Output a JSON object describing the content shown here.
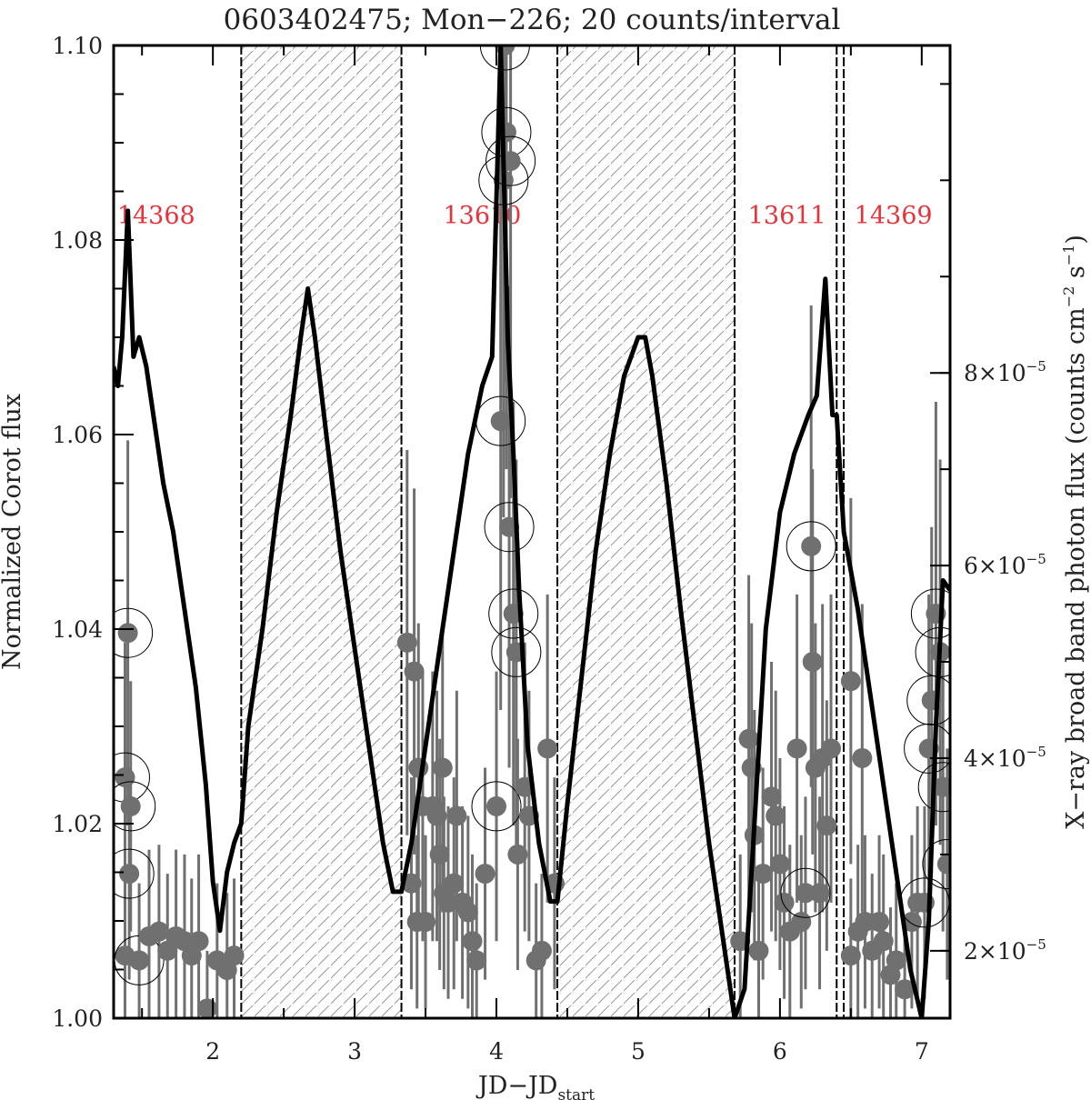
{
  "chart_data": {
    "type": "line",
    "title": "0603402475; Mon−226; 20 counts/interval",
    "xlabel": "JD−JD",
    "xlabel_sub": "start",
    "ylabel_left": "Normalized Corot flux",
    "ylabel_right": "X−ray broad band photon flux (counts cm",
    "ylabel_right_exp1": "−2",
    "ylabel_right_mid": " s",
    "ylabel_right_exp2": "−1",
    "ylabel_right_end": ")",
    "xlim": [
      1.3,
      7.2
    ],
    "ylim_left": [
      1.0,
      1.1
    ],
    "ylim_right": [
      1.3e-05,
      0.000114
    ],
    "x_ticks": [
      {
        "value": 2,
        "label": "2"
      },
      {
        "value": 3,
        "label": "3"
      },
      {
        "value": 4,
        "label": "4"
      },
      {
        "value": 5,
        "label": "5"
      },
      {
        "value": 6,
        "label": "6"
      },
      {
        "value": 7,
        "label": "7"
      }
    ],
    "y_ticks_left": [
      {
        "value": 1.0,
        "label": "1.00"
      },
      {
        "value": 1.02,
        "label": "1.02"
      },
      {
        "value": 1.04,
        "label": "1.04"
      },
      {
        "value": 1.06,
        "label": "1.06"
      },
      {
        "value": 1.08,
        "label": "1.08"
      },
      {
        "value": 1.1,
        "label": "1.10"
      }
    ],
    "y_ticks_right": [
      {
        "value": 2e-05,
        "mantissa": "2×10",
        "exp": "−5"
      },
      {
        "value": 4e-05,
        "mantissa": "4×10",
        "exp": "−5"
      },
      {
        "value": 6e-05,
        "mantissa": "6×10",
        "exp": "−5"
      },
      {
        "value": 8e-05,
        "mantissa": "8×10",
        "exp": "−5"
      }
    ],
    "observations": [
      {
        "id": "14368",
        "label_x": 1.6
      },
      {
        "id": "13610",
        "label_x": 3.9
      },
      {
        "id": "13611",
        "label_x": 6.05
      },
      {
        "id": "14369",
        "label_x": 6.8
      }
    ],
    "gap_intervals": [
      [
        2.2,
        3.33
      ],
      [
        4.43,
        5.68
      ]
    ],
    "boundaries": [
      2.2,
      3.33,
      4.43,
      5.68,
      6.4,
      6.45
    ],
    "optical_series": {
      "name": "Corot",
      "color": "#000000",
      "x": [
        1.3,
        1.33,
        1.36,
        1.4,
        1.44,
        1.48,
        1.53,
        1.58,
        1.65,
        1.72,
        1.8,
        1.88,
        1.95,
        2.0,
        2.05,
        2.1,
        2.15,
        2.2,
        2.25,
        2.35,
        2.45,
        2.55,
        2.62,
        2.67,
        2.72,
        2.8,
        2.9,
        3.0,
        3.1,
        3.2,
        3.27,
        3.33,
        3.4,
        3.5,
        3.6,
        3.7,
        3.8,
        3.9,
        3.97,
        4.03,
        4.08,
        4.12,
        4.16,
        4.22,
        4.3,
        4.38,
        4.43,
        4.5,
        4.6,
        4.7,
        4.8,
        4.9,
        5.0,
        5.05,
        5.1,
        5.2,
        5.3,
        5.4,
        5.5,
        5.6,
        5.68,
        5.75,
        5.82,
        5.9,
        6.0,
        6.1,
        6.2,
        6.26,
        6.32,
        6.37,
        6.4,
        6.45,
        6.55,
        6.65,
        6.75,
        6.85,
        6.92,
        7.0,
        7.05,
        7.1,
        7.15,
        7.2
      ],
      "y": [
        1.067,
        1.065,
        1.07,
        1.083,
        1.068,
        1.07,
        1.067,
        1.062,
        1.055,
        1.05,
        1.042,
        1.034,
        1.024,
        1.014,
        1.009,
        1.015,
        1.018,
        1.02,
        1.03,
        1.04,
        1.052,
        1.062,
        1.07,
        1.075,
        1.07,
        1.06,
        1.048,
        1.038,
        1.028,
        1.018,
        1.013,
        1.013,
        1.018,
        1.028,
        1.038,
        1.048,
        1.058,
        1.065,
        1.068,
        1.1,
        1.07,
        1.058,
        1.044,
        1.028,
        1.018,
        1.012,
        1.012,
        1.022,
        1.035,
        1.048,
        1.058,
        1.066,
        1.07,
        1.07,
        1.066,
        1.055,
        1.042,
        1.03,
        1.018,
        1.008,
        1.0,
        1.003,
        1.02,
        1.04,
        1.052,
        1.058,
        1.062,
        1.064,
        1.076,
        1.062,
        1.062,
        1.05,
        1.042,
        1.032,
        1.022,
        1.012,
        1.005,
        1.0,
        1.01,
        1.03,
        1.045,
        1.044
      ]
    },
    "xray_series": {
      "name": "X-ray",
      "color": "#707070",
      "points": [
        {
          "x": 1.4,
          "y": 5.3e-05,
          "err": 2e-05,
          "circled": true
        },
        {
          "x": 1.38,
          "y": 3.8e-05,
          "err": 1.4e-05,
          "circled": true
        },
        {
          "x": 1.42,
          "y": 3.5e-05,
          "err": 1.3e-05,
          "circled": true
        },
        {
          "x": 1.41,
          "y": 2.8e-05,
          "err": 1.1e-05,
          "circled": true
        },
        {
          "x": 1.38,
          "y": 1.95e-05,
          "err": 8e-06,
          "circled": false
        },
        {
          "x": 1.48,
          "y": 1.9e-05,
          "err": 8e-06,
          "circled": true
        },
        {
          "x": 1.55,
          "y": 2.15e-05,
          "err": 9e-06,
          "circled": false
        },
        {
          "x": 1.62,
          "y": 2.2e-05,
          "err": 9e-06,
          "circled": false
        },
        {
          "x": 1.68,
          "y": 2e-05,
          "err": 8e-06,
          "circled": false
        },
        {
          "x": 1.74,
          "y": 2.15e-05,
          "err": 9e-06,
          "circled": false
        },
        {
          "x": 1.8,
          "y": 2.1e-05,
          "err": 9e-06,
          "circled": false
        },
        {
          "x": 1.85,
          "y": 1.95e-05,
          "err": 8e-06,
          "circled": false
        },
        {
          "x": 1.9,
          "y": 2.1e-05,
          "err": 9e-06,
          "circled": false
        },
        {
          "x": 1.96,
          "y": 1.4e-05,
          "err": 6e-06,
          "circled": false
        },
        {
          "x": 2.03,
          "y": 1.9e-05,
          "err": 8e-06,
          "circled": false
        },
        {
          "x": 2.1,
          "y": 1.8e-05,
          "err": 8e-06,
          "circled": false
        },
        {
          "x": 2.15,
          "y": 1.95e-05,
          "err": 8e-06,
          "circled": false
        },
        {
          "x": 3.37,
          "y": 5.2e-05,
          "err": 2e-05,
          "circled": false
        },
        {
          "x": 3.42,
          "y": 4.9e-05,
          "err": 1.9e-05,
          "circled": false
        },
        {
          "x": 3.45,
          "y": 3.9e-05,
          "err": 1.5e-05,
          "circled": false
        },
        {
          "x": 3.48,
          "y": 3.5e-05,
          "err": 1.4e-05,
          "circled": false
        },
        {
          "x": 3.4,
          "y": 2.7e-05,
          "err": 1.1e-05,
          "circled": false
        },
        {
          "x": 3.44,
          "y": 2.3e-05,
          "err": 9e-06,
          "circled": false
        },
        {
          "x": 3.5,
          "y": 2.3e-05,
          "err": 9e-06,
          "circled": false
        },
        {
          "x": 3.55,
          "y": 3.5e-05,
          "err": 1.4e-05,
          "circled": false
        },
        {
          "x": 3.58,
          "y": 3.4e-05,
          "err": 1.3e-05,
          "circled": false
        },
        {
          "x": 3.62,
          "y": 3.9e-05,
          "err": 1.5e-05,
          "circled": false
        },
        {
          "x": 3.6,
          "y": 3e-05,
          "err": 1.2e-05,
          "circled": false
        },
        {
          "x": 3.63,
          "y": 2.6e-05,
          "err": 1e-05,
          "circled": false
        },
        {
          "x": 3.66,
          "y": 2.5e-05,
          "err": 1e-05,
          "circled": false
        },
        {
          "x": 3.7,
          "y": 2.7e-05,
          "err": 1.1e-05,
          "circled": false
        },
        {
          "x": 3.72,
          "y": 3.4e-05,
          "err": 1.3e-05,
          "circled": false
        },
        {
          "x": 3.76,
          "y": 2.5e-05,
          "err": 1e-05,
          "circled": false
        },
        {
          "x": 3.8,
          "y": 2.4e-05,
          "err": 1e-05,
          "circled": false
        },
        {
          "x": 3.83,
          "y": 2.1e-05,
          "err": 9e-06,
          "circled": false
        },
        {
          "x": 3.86,
          "y": 1.9e-05,
          "err": 8e-06,
          "circled": false
        },
        {
          "x": 3.92,
          "y": 2.8e-05,
          "err": 1.1e-05,
          "circled": false
        },
        {
          "x": 4.0,
          "y": 3.5e-05,
          "err": 1.4e-05,
          "circled": true
        },
        {
          "x": 4.03,
          "y": 7.5e-05,
          "err": 3e-05,
          "circled": true
        },
        {
          "x": 4.05,
          "y": 0.0001,
          "err": 3.5e-05,
          "circled": true
        },
        {
          "x": 4.07,
          "y": 0.000105,
          "err": 3.5e-05,
          "circled": true
        },
        {
          "x": 4.1,
          "y": 0.000102,
          "err": 3.5e-05,
          "circled": true
        },
        {
          "x": 4.06,
          "y": 0.000114,
          "err": 3.5e-05,
          "circled": true
        },
        {
          "x": 4.09,
          "y": 6.4e-05,
          "err": 2.5e-05,
          "circled": true
        },
        {
          "x": 4.12,
          "y": 5.5e-05,
          "err": 2.2e-05,
          "circled": true
        },
        {
          "x": 4.14,
          "y": 5.1e-05,
          "err": 2e-05,
          "circled": true
        },
        {
          "x": 4.15,
          "y": 3e-05,
          "err": 1.2e-05,
          "circled": false
        },
        {
          "x": 4.2,
          "y": 3.7e-05,
          "err": 1.5e-05,
          "circled": false
        },
        {
          "x": 4.23,
          "y": 3.4e-05,
          "err": 1.3e-05,
          "circled": false
        },
        {
          "x": 4.28,
          "y": 1.9e-05,
          "err": 8e-06,
          "circled": false
        },
        {
          "x": 4.32,
          "y": 2e-05,
          "err": 8e-06,
          "circled": false
        },
        {
          "x": 4.36,
          "y": 4.1e-05,
          "err": 1.6e-05,
          "circled": false
        },
        {
          "x": 4.41,
          "y": 2.7e-05,
          "err": 1.1e-05,
          "circled": false
        },
        {
          "x": 5.72,
          "y": 2.1e-05,
          "err": 9e-06,
          "circled": false
        },
        {
          "x": 5.78,
          "y": 4.2e-05,
          "err": 1.7e-05,
          "circled": false
        },
        {
          "x": 5.8,
          "y": 3.9e-05,
          "err": 1.5e-05,
          "circled": false
        },
        {
          "x": 5.82,
          "y": 3.2e-05,
          "err": 1.3e-05,
          "circled": false
        },
        {
          "x": 5.85,
          "y": 2e-05,
          "err": 8e-06,
          "circled": false
        },
        {
          "x": 5.88,
          "y": 2.8e-05,
          "err": 1.1e-05,
          "circled": false
        },
        {
          "x": 5.94,
          "y": 3.6e-05,
          "err": 1.4e-05,
          "circled": false
        },
        {
          "x": 5.97,
          "y": 3.4e-05,
          "err": 1.3e-05,
          "circled": false
        },
        {
          "x": 6.0,
          "y": 2.9e-05,
          "err": 1.1e-05,
          "circled": false
        },
        {
          "x": 6.03,
          "y": 2.5e-05,
          "err": 1e-05,
          "circled": false
        },
        {
          "x": 6.07,
          "y": 2.2e-05,
          "err": 9e-06,
          "circled": false
        },
        {
          "x": 6.12,
          "y": 4.1e-05,
          "err": 1.6e-05,
          "circled": false
        },
        {
          "x": 6.15,
          "y": 2.3e-05,
          "err": 9e-06,
          "circled": false
        },
        {
          "x": 6.18,
          "y": 2.6e-05,
          "err": 1e-05,
          "circled": true
        },
        {
          "x": 6.22,
          "y": 6.2e-05,
          "err": 2.5e-05,
          "circled": true
        },
        {
          "x": 6.23,
          "y": 5e-05,
          "err": 2e-05,
          "circled": false
        },
        {
          "x": 6.25,
          "y": 3.9e-05,
          "err": 1.5e-05,
          "circled": false
        },
        {
          "x": 6.28,
          "y": 2.6e-05,
          "err": 1e-05,
          "circled": false
        },
        {
          "x": 6.3,
          "y": 4e-05,
          "err": 1.6e-05,
          "circled": false
        },
        {
          "x": 6.33,
          "y": 3.3e-05,
          "err": 1.3e-05,
          "circled": false
        },
        {
          "x": 6.36,
          "y": 4.1e-05,
          "err": 1.6e-05,
          "circled": false
        },
        {
          "x": 6.5,
          "y": 4.8e-05,
          "err": 1.9e-05,
          "circled": false
        },
        {
          "x": 6.58,
          "y": 4e-05,
          "err": 1.6e-05,
          "circled": false
        },
        {
          "x": 6.5,
          "y": 1.95e-05,
          "err": 8e-06,
          "circled": false
        },
        {
          "x": 6.55,
          "y": 2.2e-05,
          "err": 9e-06,
          "circled": false
        },
        {
          "x": 6.6,
          "y": 2.3e-05,
          "err": 9e-06,
          "circled": false
        },
        {
          "x": 6.65,
          "y": 2e-05,
          "err": 8e-06,
          "circled": false
        },
        {
          "x": 6.7,
          "y": 2.3e-05,
          "err": 9e-06,
          "circled": false
        },
        {
          "x": 6.73,
          "y": 2.1e-05,
          "err": 9e-06,
          "circled": false
        },
        {
          "x": 6.78,
          "y": 1.75e-05,
          "err": 7e-06,
          "circled": false
        },
        {
          "x": 6.82,
          "y": 1.9e-05,
          "err": 8e-06,
          "circled": false
        },
        {
          "x": 6.88,
          "y": 1.6e-05,
          "err": 7e-06,
          "circled": false
        },
        {
          "x": 6.93,
          "y": 2.3e-05,
          "err": 9e-06,
          "circled": false
        },
        {
          "x": 6.97,
          "y": 2.5e-05,
          "err": 1e-05,
          "circled": false
        },
        {
          "x": 7.02,
          "y": 2.5e-05,
          "err": 1e-05,
          "circled": true
        },
        {
          "x": 7.05,
          "y": 4.1e-05,
          "err": 1.6e-05,
          "circled": true
        },
        {
          "x": 7.07,
          "y": 4.6e-05,
          "err": 1.8e-05,
          "circled": true
        },
        {
          "x": 7.1,
          "y": 5.5e-05,
          "err": 2.2e-05,
          "circled": true
        },
        {
          "x": 7.13,
          "y": 5.1e-05,
          "err": 2e-05,
          "circled": true
        },
        {
          "x": 7.15,
          "y": 3.7e-05,
          "err": 1.5e-05,
          "circled": true
        },
        {
          "x": 7.18,
          "y": 2.9e-05,
          "err": 1.2e-05,
          "circled": true
        }
      ]
    }
  }
}
